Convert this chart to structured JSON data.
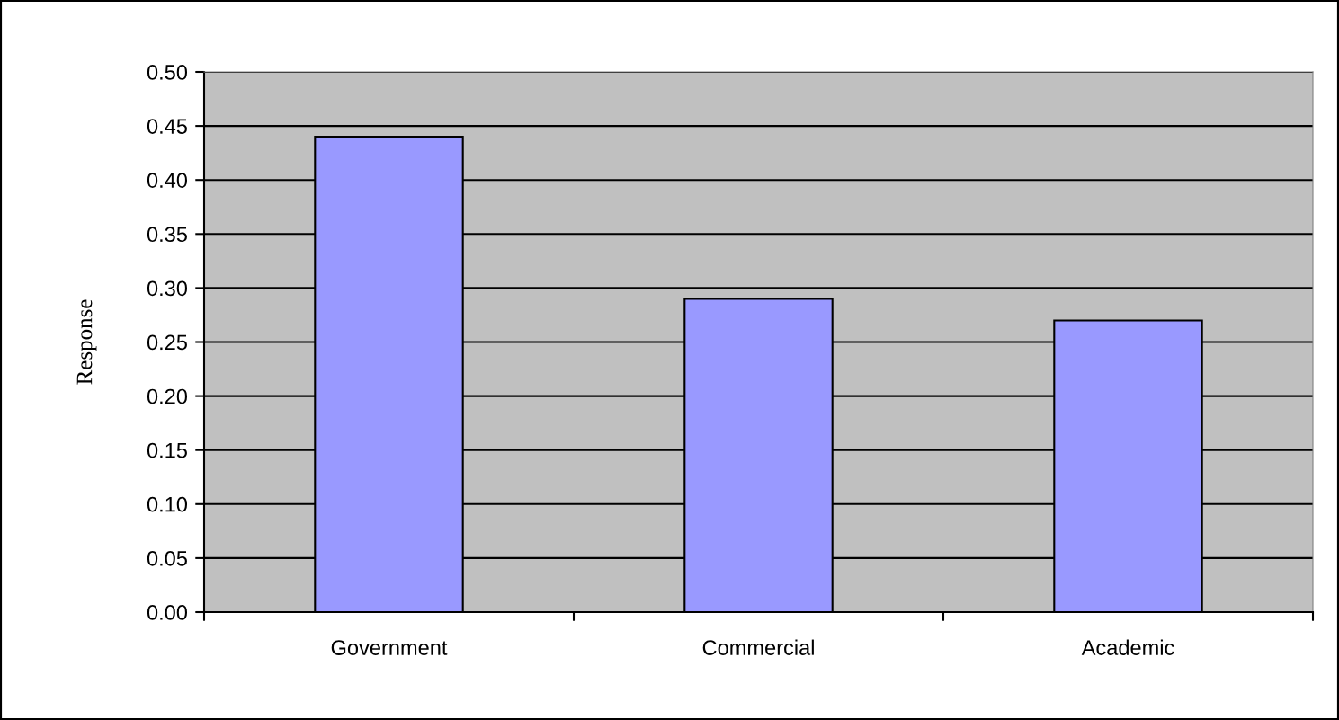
{
  "chart_data": {
    "type": "bar",
    "ylabel": "Response",
    "categories": [
      "Government",
      "Commercial",
      "Academic"
    ],
    "values": [
      0.44,
      0.29,
      0.27
    ],
    "color": "#9999ff",
    "ylim": [
      0,
      0.5
    ],
    "yticks": [
      {
        "value": 0,
        "label": "0.00"
      },
      {
        "value": 0.05,
        "label": "0.05"
      },
      {
        "value": 0.1,
        "label": "0.10"
      },
      {
        "value": 0.15,
        "label": "0.15"
      },
      {
        "value": 0.2,
        "label": "0.20"
      },
      {
        "value": 0.25,
        "label": "0.25"
      },
      {
        "value": 0.3,
        "label": "0.30"
      },
      {
        "value": 0.35,
        "label": "0.35"
      },
      {
        "value": 0.4,
        "label": "0.40"
      },
      {
        "value": 0.45,
        "label": "0.45"
      },
      {
        "value": 0.5,
        "label": "0.50"
      }
    ],
    "grid": "y",
    "legend": false
  }
}
